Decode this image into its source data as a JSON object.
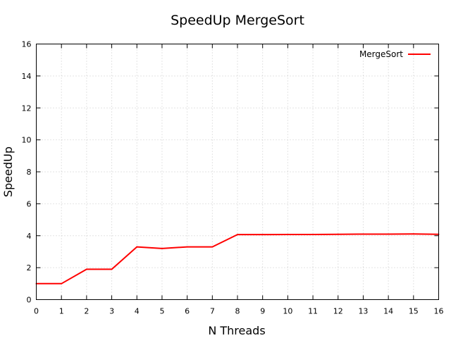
{
  "chart_data": {
    "type": "line",
    "title": "SpeedUp MergeSort",
    "xlabel": "N Threads",
    "ylabel": "SpeedUp",
    "xlim": [
      0,
      16
    ],
    "ylim": [
      0,
      16
    ],
    "xticks": [
      0,
      1,
      2,
      3,
      4,
      5,
      6,
      7,
      8,
      9,
      10,
      11,
      12,
      13,
      14,
      15,
      16
    ],
    "yticks": [
      0,
      2,
      4,
      6,
      8,
      10,
      12,
      14,
      16
    ],
    "grid": true,
    "legend": "top-right",
    "series": [
      {
        "name": "MergeSort",
        "color": "#ff0000",
        "x": [
          0,
          1,
          2,
          3,
          4,
          5,
          6,
          7,
          8,
          9,
          10,
          11,
          12,
          13,
          14,
          15,
          16
        ],
        "y": [
          1.0,
          1.0,
          1.9,
          1.9,
          3.3,
          3.2,
          3.3,
          3.3,
          4.07,
          4.07,
          4.08,
          4.08,
          4.09,
          4.1,
          4.1,
          4.11,
          4.09
        ]
      }
    ]
  }
}
